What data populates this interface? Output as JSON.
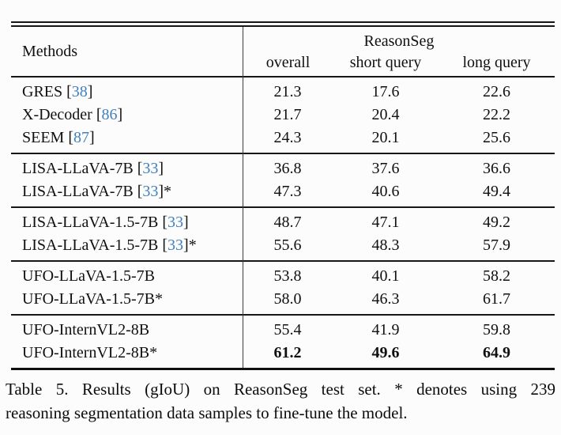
{
  "colors": {
    "background": "#fcfcfc",
    "text": "#101010",
    "citation_link": "#4180bf",
    "rule": "#161616"
  },
  "table": {
    "header": {
      "methods": "Methods",
      "group": "ReasonSeg",
      "columns": [
        "overall",
        "short query",
        "long query"
      ]
    },
    "groups": [
      {
        "rows": [
          {
            "pre": "GRES [",
            "cite": "38",
            "post": "]",
            "values": [
              "21.3",
              "17.6",
              "22.6"
            ]
          },
          {
            "pre": "X-Decoder [",
            "cite": "86",
            "post": "]",
            "values": [
              "21.7",
              "20.4",
              "22.2"
            ]
          },
          {
            "pre": "SEEM [",
            "cite": "87",
            "post": "]",
            "values": [
              "24.3",
              "20.1",
              "25.6"
            ]
          }
        ]
      },
      {
        "rows": [
          {
            "pre": "LISA-LLaVA-7B [",
            "cite": "33",
            "post": "]",
            "values": [
              "36.8",
              "37.6",
              "36.6"
            ]
          },
          {
            "pre": "LISA-LLaVA-7B [",
            "cite": "33",
            "post": "]*",
            "values": [
              "47.3",
              "40.6",
              "49.4"
            ]
          }
        ]
      },
      {
        "rows": [
          {
            "pre": "LISA-LLaVA-1.5-7B [",
            "cite": "33",
            "post": "]",
            "values": [
              "48.7",
              "47.1",
              "49.2"
            ]
          },
          {
            "pre": "LISA-LLaVA-1.5-7B [",
            "cite": "33",
            "post": "]*",
            "values": [
              "55.6",
              "48.3",
              "57.9"
            ]
          }
        ]
      },
      {
        "rows": [
          {
            "pre": "UFO-LLaVA-1.5-7B",
            "cite": "",
            "post": "",
            "values": [
              "53.8",
              "40.1",
              "58.2"
            ]
          },
          {
            "pre": "UFO-LLaVA-1.5-7B*",
            "cite": "",
            "post": "",
            "values": [
              "58.0",
              "46.3",
              "61.7"
            ]
          }
        ]
      },
      {
        "rows": [
          {
            "pre": "UFO-InternVL2-8B",
            "cite": "",
            "post": "",
            "values": [
              "55.4",
              "41.9",
              "59.8"
            ]
          },
          {
            "pre": "UFO-InternVL2-8B*",
            "cite": "",
            "post": "",
            "values": [
              "61.2",
              "49.6",
              "64.9"
            ]
          }
        ]
      }
    ]
  },
  "caption": {
    "line1": "Table 5. Results (gIoU) on ReasonSeg test set. * denotes using 239",
    "line2": "reasoning segmentation data samples to fine-tune the model."
  }
}
